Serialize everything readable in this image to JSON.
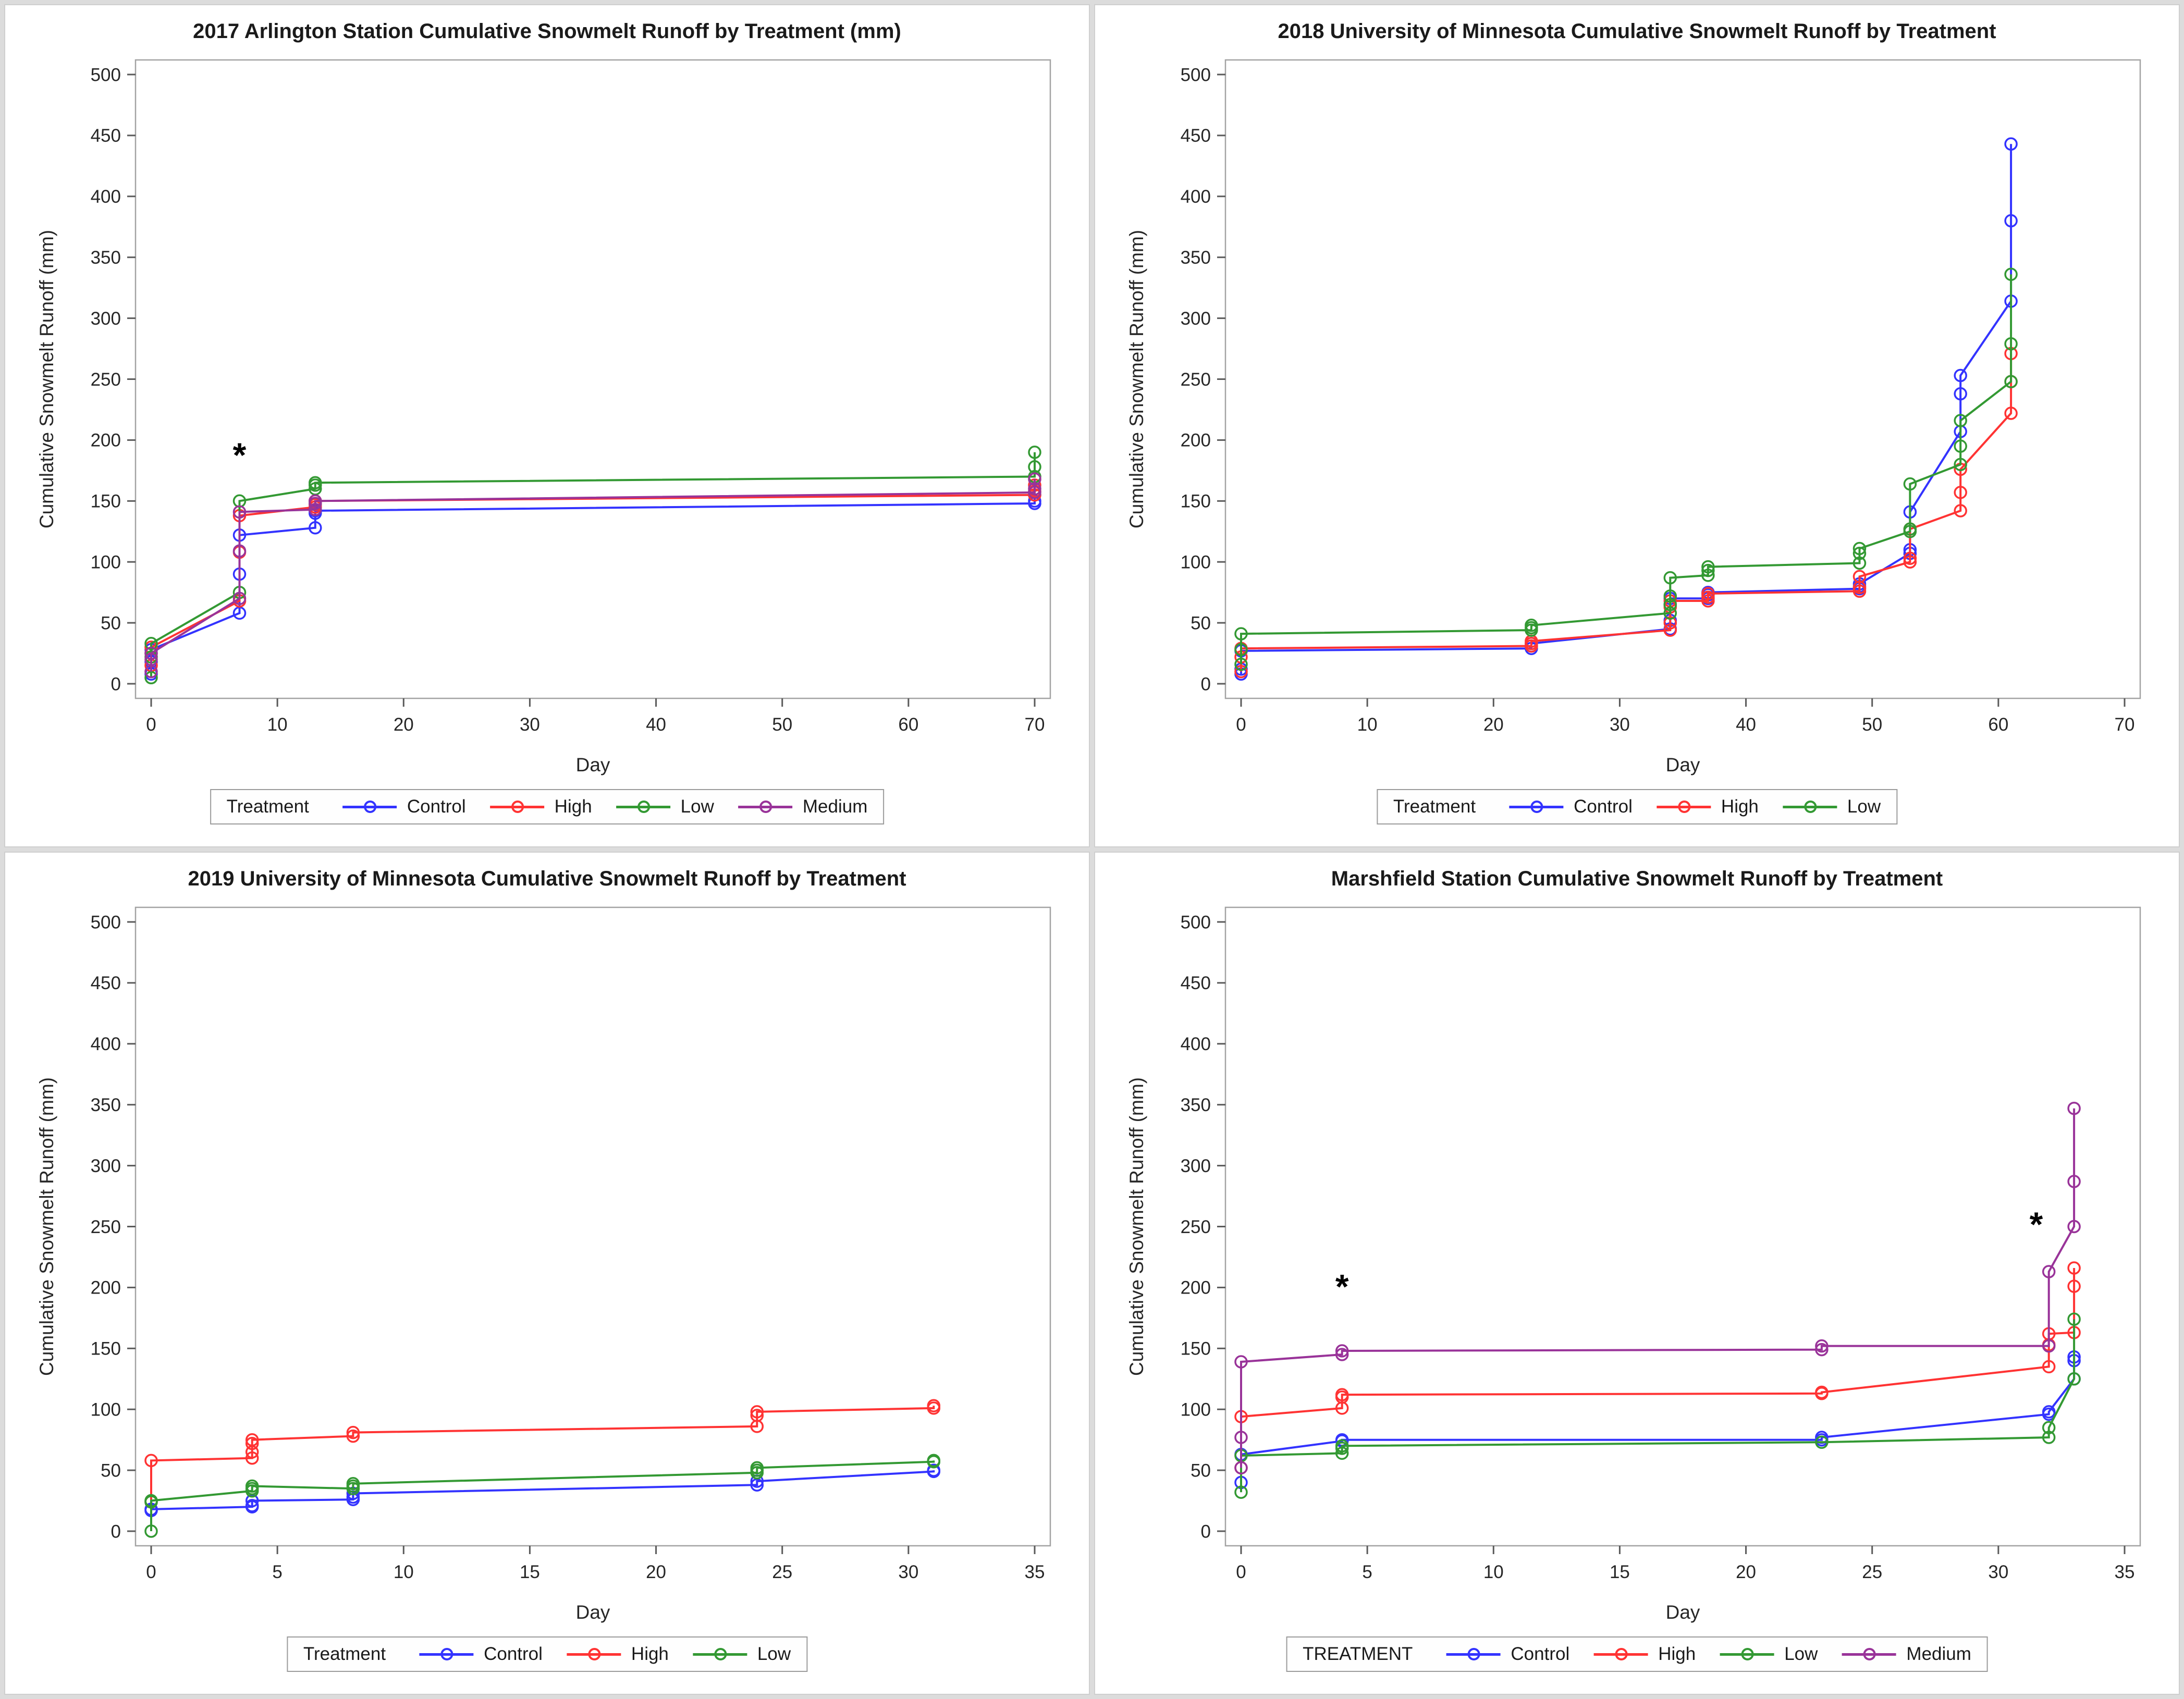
{
  "page": {
    "background": "#dcdcdc"
  },
  "colors": {
    "Control": "#3333FF",
    "High": "#FF3333",
    "Low": "#339933",
    "Medium": "#993399"
  },
  "axis_style": {
    "frame_color": "#a3a3a3",
    "tick_color": "#5a5a5a",
    "label_color": "#262626"
  },
  "chart_data": [
    {
      "id": "arlington-2017",
      "type": "line",
      "title": "2017 Arlington Station Cumulative Snowmelt Runoff by Treatment (mm)",
      "xlabel": "Day",
      "ylabel": "Cumulative Snowmelt Runoff (mm)",
      "xlim": [
        0,
        70
      ],
      "ylim": [
        0,
        500
      ],
      "xticks": [
        0,
        10,
        20,
        30,
        40,
        50,
        60,
        70
      ],
      "yticks": [
        0,
        50,
        100,
        150,
        200,
        250,
        300,
        350,
        400,
        450,
        500
      ],
      "grid": false,
      "legend_position": "bottom",
      "legend_title": "Treatment",
      "annotations": [
        {
          "symbol": "*",
          "x": 7,
          "y": 178
        }
      ],
      "series": [
        {
          "name": "Control",
          "color": "Control",
          "points": [
            {
              "x": 0,
              "y": [
                8,
                18,
                28
              ]
            },
            {
              "x": 7,
              "y": [
                58,
                90,
                122
              ]
            },
            {
              "x": 13,
              "y": [
                128,
                140,
                142
              ]
            },
            {
              "x": 70,
              "y": [
                148,
                150,
                155
              ]
            }
          ]
        },
        {
          "name": "High",
          "color": "High",
          "points": [
            {
              "x": 0,
              "y": [
                15,
                25,
                30
              ]
            },
            {
              "x": 7,
              "y": [
                68,
                108,
                138
              ]
            },
            {
              "x": 13,
              "y": [
                145,
                147,
                150
              ]
            },
            {
              "x": 70,
              "y": [
                155,
                158,
                163
              ]
            }
          ]
        },
        {
          "name": "Low",
          "color": "Low",
          "points": [
            {
              "x": 0,
              "y": [
                5,
                22,
                33
              ]
            },
            {
              "x": 7,
              "y": [
                75,
                150
              ]
            },
            {
              "x": 13,
              "y": [
                160,
                163,
                165
              ]
            },
            {
              "x": 70,
              "y": [
                170,
                178,
                190
              ]
            }
          ]
        },
        {
          "name": "Medium",
          "color": "Medium",
          "points": [
            {
              "x": 0,
              "y": [
                10,
                20,
                25
              ]
            },
            {
              "x": 7,
              "y": [
                70,
                109,
                141
              ]
            },
            {
              "x": 13,
              "y": [
                143,
                148,
                150
              ]
            },
            {
              "x": 70,
              "y": [
                157,
                160,
                168
              ]
            }
          ]
        }
      ]
    },
    {
      "id": "umn-2018",
      "type": "line",
      "title": "2018 University of Minnesota Cumulative Snowmelt Runoff by Treatment",
      "xlabel": "Day",
      "ylabel": "Cumulative Snowmelt Runoff (mm)",
      "xlim": [
        0,
        70
      ],
      "ylim": [
        0,
        500
      ],
      "xticks": [
        0,
        10,
        20,
        30,
        40,
        50,
        60,
        70
      ],
      "yticks": [
        0,
        50,
        100,
        150,
        200,
        250,
        300,
        350,
        400,
        450,
        500
      ],
      "grid": false,
      "legend_position": "bottom",
      "legend_title": "Treatment",
      "annotations": [],
      "series": [
        {
          "name": "Control",
          "color": "Control",
          "points": [
            {
              "x": 0,
              "y": [
                8,
                12,
                27
              ]
            },
            {
              "x": 23,
              "y": [
                29,
                31,
                33
              ]
            },
            {
              "x": 34,
              "y": [
                45,
                52,
                65,
                70
              ]
            },
            {
              "x": 37,
              "y": [
                70,
                73,
                75
              ]
            },
            {
              "x": 49,
              "y": [
                78,
                80,
                82
              ]
            },
            {
              "x": 53,
              "y": [
                107,
                110,
                141
              ]
            },
            {
              "x": 57,
              "y": [
                207,
                238,
                253
              ]
            },
            {
              "x": 61,
              "y": [
                314,
                380,
                443
              ]
            }
          ]
        },
        {
          "name": "High",
          "color": "High",
          "points": [
            {
              "x": 0,
              "y": [
                10,
                22,
                29
              ]
            },
            {
              "x": 23,
              "y": [
                31,
                33,
                35
              ]
            },
            {
              "x": 34,
              "y": [
                44,
                50,
                63,
                68
              ]
            },
            {
              "x": 37,
              "y": [
                68,
                71,
                74
              ]
            },
            {
              "x": 49,
              "y": [
                76,
                79,
                88
              ]
            },
            {
              "x": 53,
              "y": [
                100,
                103,
                127
              ]
            },
            {
              "x": 57,
              "y": [
                142,
                157,
                176
              ]
            },
            {
              "x": 61,
              "y": [
                222,
                248,
                271
              ]
            }
          ]
        },
        {
          "name": "Low",
          "color": "Low",
          "points": [
            {
              "x": 0,
              "y": [
                16,
                28,
                41
              ]
            },
            {
              "x": 23,
              "y": [
                44,
                46,
                48
              ]
            },
            {
              "x": 34,
              "y": [
                58,
                65,
                72,
                87
              ]
            },
            {
              "x": 37,
              "y": [
                89,
                93,
                96
              ]
            },
            {
              "x": 49,
              "y": [
                99,
                107,
                111
              ]
            },
            {
              "x": 53,
              "y": [
                125,
                127,
                164
              ]
            },
            {
              "x": 57,
              "y": [
                180,
                195,
                216
              ]
            },
            {
              "x": 61,
              "y": [
                248,
                279,
                336
              ]
            }
          ]
        }
      ]
    },
    {
      "id": "umn-2019",
      "type": "line",
      "title": "2019 University of Minnesota Cumulative Snowmelt Runoff by Treatment",
      "xlabel": "Day",
      "ylabel": "Cumulative Snowmelt Runoff (mm)",
      "xlim": [
        0,
        35
      ],
      "ylim": [
        0,
        500
      ],
      "xticks": [
        0,
        5,
        10,
        15,
        20,
        25,
        30,
        35
      ],
      "yticks": [
        0,
        50,
        100,
        150,
        200,
        250,
        300,
        350,
        400,
        450,
        500
      ],
      "grid": false,
      "legend_position": "bottom",
      "legend_title": "Treatment",
      "annotations": [],
      "series": [
        {
          "name": "Control",
          "color": "Control",
          "points": [
            {
              "x": 0,
              "y": [
                17,
                18
              ]
            },
            {
              "x": 4,
              "y": [
                20,
                21,
                25
              ]
            },
            {
              "x": 8,
              "y": [
                26,
                28,
                31
              ]
            },
            {
              "x": 24,
              "y": [
                38,
                41
              ]
            },
            {
              "x": 31,
              "y": [
                49,
                50
              ]
            }
          ]
        },
        {
          "name": "High",
          "color": "High",
          "points": [
            {
              "x": 0,
              "y": [
                24,
                58
              ]
            },
            {
              "x": 4,
              "y": [
                60,
                65,
                72,
                75
              ]
            },
            {
              "x": 8,
              "y": [
                78,
                81
              ]
            },
            {
              "x": 24,
              "y": [
                86,
                95,
                98
              ]
            },
            {
              "x": 31,
              "y": [
                101,
                103
              ]
            }
          ]
        },
        {
          "name": "Low",
          "color": "Low",
          "points": [
            {
              "x": 0,
              "y": [
                0,
                24,
                25
              ]
            },
            {
              "x": 4,
              "y": [
                33,
                35,
                37
              ]
            },
            {
              "x": 8,
              "y": [
                35,
                37,
                39
              ]
            },
            {
              "x": 24,
              "y": [
                48,
                50,
                52
              ]
            },
            {
              "x": 31,
              "y": [
                57,
                58
              ]
            }
          ]
        }
      ]
    },
    {
      "id": "marshfield",
      "type": "line",
      "title": "Marshfield Station Cumulative Snowmelt Runoff by Treatment",
      "xlabel": "Day",
      "ylabel": "Cumulative Snowmelt Runoff (mm)",
      "xlim": [
        0,
        35
      ],
      "ylim": [
        0,
        500
      ],
      "xticks": [
        0,
        5,
        10,
        15,
        20,
        25,
        30,
        35
      ],
      "yticks": [
        0,
        50,
        100,
        150,
        200,
        250,
        300,
        350,
        400,
        450,
        500
      ],
      "grid": false,
      "legend_position": "bottom",
      "legend_title": "TREATMENT",
      "annotations": [
        {
          "symbol": "*",
          "x": 4,
          "y": 191
        },
        {
          "symbol": "*",
          "x": 31.5,
          "y": 242
        }
      ],
      "series": [
        {
          "name": "Control",
          "color": "Control",
          "points": [
            {
              "x": 0,
              "y": [
                40,
                63
              ]
            },
            {
              "x": 4,
              "y": [
                74,
                75
              ]
            },
            {
              "x": 23,
              "y": [
                75,
                77
              ]
            },
            {
              "x": 32,
              "y": [
                96,
                98
              ]
            },
            {
              "x": 33,
              "y": [
                125,
                140,
                143
              ]
            }
          ]
        },
        {
          "name": "High",
          "color": "High",
          "points": [
            {
              "x": 0,
              "y": [
                52,
                94
              ]
            },
            {
              "x": 4,
              "y": [
                101,
                110,
                112
              ]
            },
            {
              "x": 23,
              "y": [
                113,
                114
              ]
            },
            {
              "x": 32,
              "y": [
                135,
                153,
                162
              ]
            },
            {
              "x": 33,
              "y": [
                163,
                201,
                216
              ]
            }
          ]
        },
        {
          "name": "Low",
          "color": "Low",
          "points": [
            {
              "x": 0,
              "y": [
                32,
                62
              ]
            },
            {
              "x": 4,
              "y": [
                64,
                68,
                70
              ]
            },
            {
              "x": 23,
              "y": [
                73
              ]
            },
            {
              "x": 32,
              "y": [
                77,
                85
              ]
            },
            {
              "x": 33,
              "y": [
                125,
                174
              ]
            }
          ]
        },
        {
          "name": "Medium",
          "color": "Medium",
          "points": [
            {
              "x": 0,
              "y": [
                52,
                77,
                139
              ]
            },
            {
              "x": 4,
              "y": [
                145,
                148
              ]
            },
            {
              "x": 23,
              "y": [
                149,
                152
              ]
            },
            {
              "x": 32,
              "y": [
                152,
                213
              ]
            },
            {
              "x": 33,
              "y": [
                250,
                287,
                347
              ]
            }
          ]
        }
      ]
    }
  ]
}
